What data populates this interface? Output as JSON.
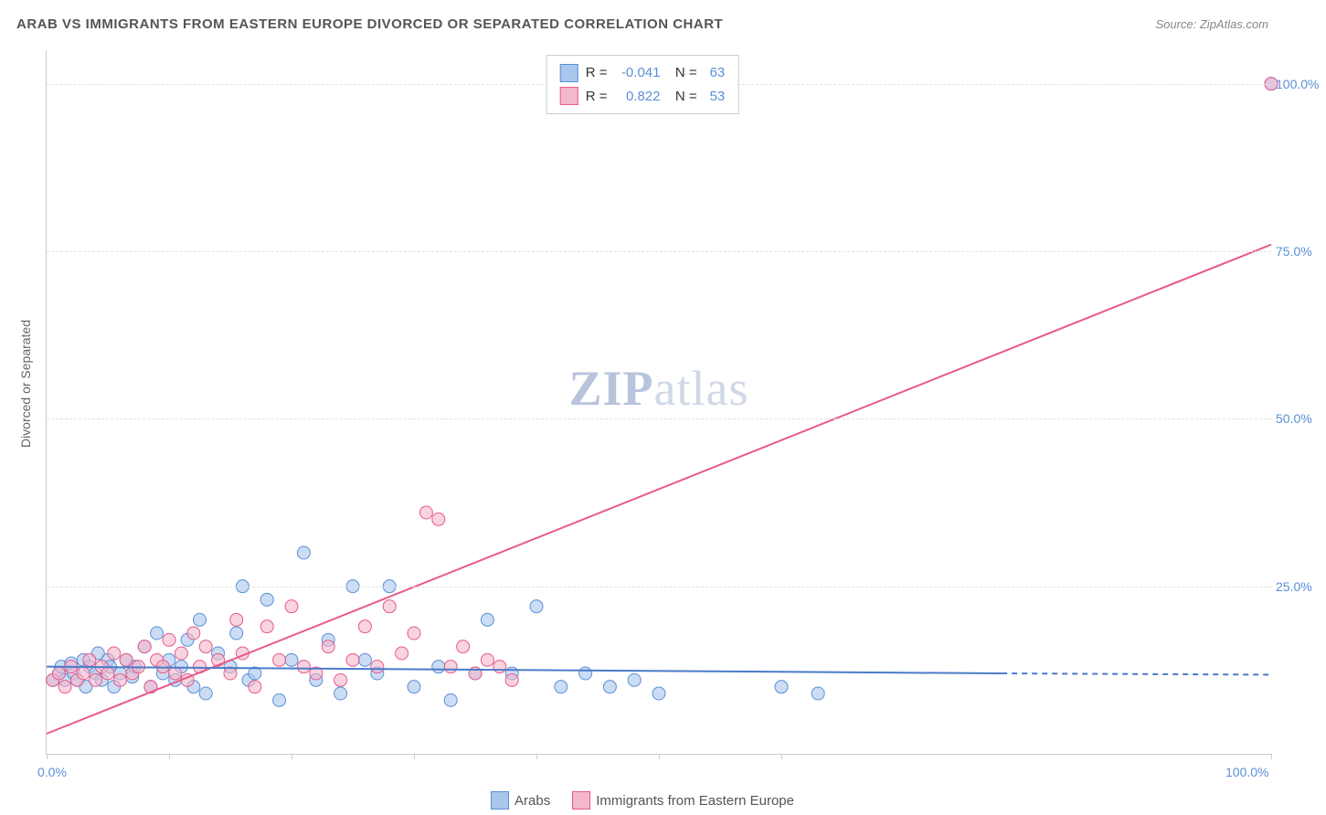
{
  "header": {
    "title": "ARAB VS IMMIGRANTS FROM EASTERN EUROPE DIVORCED OR SEPARATED CORRELATION CHART",
    "source": "Source: ZipAtlas.com"
  },
  "chart": {
    "type": "scatter",
    "ylabel": "Divorced or Separated",
    "xlim": [
      0,
      100
    ],
    "ylim": [
      0,
      105
    ],
    "xtick_positions": [
      0,
      10,
      20,
      30,
      40,
      50,
      60,
      100
    ],
    "xtick_labels": {
      "0": "0.0%",
      "100": "100.0%"
    },
    "ytick_positions": [
      25,
      50,
      75,
      100
    ],
    "ytick_labels": [
      "25.0%",
      "50.0%",
      "75.0%",
      "100.0%"
    ],
    "grid_color": "#e0e0e0",
    "background_color": "#ffffff",
    "axis_color": "#cccccc",
    "tick_label_color": "#5b8fd6",
    "label_fontsize": 14,
    "watermark": {
      "zip": "ZIP",
      "atlas": "atlas"
    },
    "series": [
      {
        "name": "Arabs",
        "color_fill": "#a9c6ec",
        "color_stroke": "#5b8fd6",
        "marker_radius": 7,
        "fill_opacity": 0.6,
        "R": "-0.041",
        "N": "63",
        "trend": {
          "x1": 0,
          "y1": 13,
          "x2": 78,
          "y2": 12,
          "stroke": "#4a7bc8",
          "width": 2
        },
        "trend_dash": {
          "x1": 78,
          "y1": 12,
          "x2": 100,
          "y2": 11.8,
          "stroke": "#4a7bc8",
          "width": 2
        },
        "points": [
          [
            0.5,
            11
          ],
          [
            1,
            12
          ],
          [
            1.2,
            13
          ],
          [
            1.5,
            11
          ],
          [
            2,
            13.5
          ],
          [
            2.2,
            12
          ],
          [
            2.5,
            11
          ],
          [
            3,
            14
          ],
          [
            3.2,
            10
          ],
          [
            3.5,
            13
          ],
          [
            4,
            12
          ],
          [
            4.2,
            15
          ],
          [
            4.5,
            11
          ],
          [
            5,
            14
          ],
          [
            5.2,
            13
          ],
          [
            5.5,
            10
          ],
          [
            6,
            12
          ],
          [
            6.5,
            14
          ],
          [
            7,
            11.5
          ],
          [
            7.2,
            13
          ],
          [
            8,
            16
          ],
          [
            8.5,
            10
          ],
          [
            9,
            18
          ],
          [
            9.5,
            12
          ],
          [
            10,
            14
          ],
          [
            10.5,
            11
          ],
          [
            11,
            13
          ],
          [
            11.5,
            17
          ],
          [
            12,
            10
          ],
          [
            12.5,
            20
          ],
          [
            13,
            9
          ],
          [
            14,
            15
          ],
          [
            15,
            13
          ],
          [
            15.5,
            18
          ],
          [
            16,
            25
          ],
          [
            16.5,
            11
          ],
          [
            17,
            12
          ],
          [
            18,
            23
          ],
          [
            19,
            8
          ],
          [
            20,
            14
          ],
          [
            21,
            30
          ],
          [
            22,
            11
          ],
          [
            23,
            17
          ],
          [
            24,
            9
          ],
          [
            25,
            25
          ],
          [
            26,
            14
          ],
          [
            27,
            12
          ],
          [
            28,
            25
          ],
          [
            30,
            10
          ],
          [
            32,
            13
          ],
          [
            33,
            8
          ],
          [
            35,
            12
          ],
          [
            36,
            20
          ],
          [
            38,
            12
          ],
          [
            40,
            22
          ],
          [
            42,
            10
          ],
          [
            44,
            12
          ],
          [
            46,
            10
          ],
          [
            48,
            11
          ],
          [
            50,
            9
          ],
          [
            60,
            10
          ],
          [
            63,
            9
          ],
          [
            100,
            100
          ]
        ]
      },
      {
        "name": "Immigrants from Eastern Europe",
        "color_fill": "#f4b8cb",
        "color_stroke": "#e85a8a",
        "marker_radius": 7,
        "fill_opacity": 0.6,
        "R": "0.822",
        "N": "53",
        "trend": {
          "x1": 0,
          "y1": 3,
          "x2": 100,
          "y2": 76,
          "stroke": "#e85a8a",
          "width": 2
        },
        "points": [
          [
            0.5,
            11
          ],
          [
            1,
            12
          ],
          [
            1.5,
            10
          ],
          [
            2,
            13
          ],
          [
            2.5,
            11
          ],
          [
            3,
            12
          ],
          [
            3.5,
            14
          ],
          [
            4,
            11
          ],
          [
            4.5,
            13
          ],
          [
            5,
            12
          ],
          [
            5.5,
            15
          ],
          [
            6,
            11
          ],
          [
            6.5,
            14
          ],
          [
            7,
            12
          ],
          [
            7.5,
            13
          ],
          [
            8,
            16
          ],
          [
            8.5,
            10
          ],
          [
            9,
            14
          ],
          [
            9.5,
            13
          ],
          [
            10,
            17
          ],
          [
            10.5,
            12
          ],
          [
            11,
            15
          ],
          [
            11.5,
            11
          ],
          [
            12,
            18
          ],
          [
            12.5,
            13
          ],
          [
            13,
            16
          ],
          [
            14,
            14
          ],
          [
            15,
            12
          ],
          [
            15.5,
            20
          ],
          [
            16,
            15
          ],
          [
            17,
            10
          ],
          [
            18,
            19
          ],
          [
            19,
            14
          ],
          [
            20,
            22
          ],
          [
            21,
            13
          ],
          [
            22,
            12
          ],
          [
            23,
            16
          ],
          [
            24,
            11
          ],
          [
            25,
            14
          ],
          [
            26,
            19
          ],
          [
            27,
            13
          ],
          [
            28,
            22
          ],
          [
            29,
            15
          ],
          [
            30,
            18
          ],
          [
            31,
            36
          ],
          [
            32,
            35
          ],
          [
            33,
            13
          ],
          [
            34,
            16
          ],
          [
            35,
            12
          ],
          [
            36,
            14
          ],
          [
            37,
            13
          ],
          [
            38,
            11
          ],
          [
            100,
            100
          ]
        ]
      }
    ],
    "bottom_legend": [
      {
        "label": "Arabs",
        "fill": "#a9c6ec",
        "stroke": "#5b8fd6"
      },
      {
        "label": "Immigrants from Eastern Europe",
        "fill": "#f4b8cb",
        "stroke": "#e85a8a"
      }
    ]
  }
}
